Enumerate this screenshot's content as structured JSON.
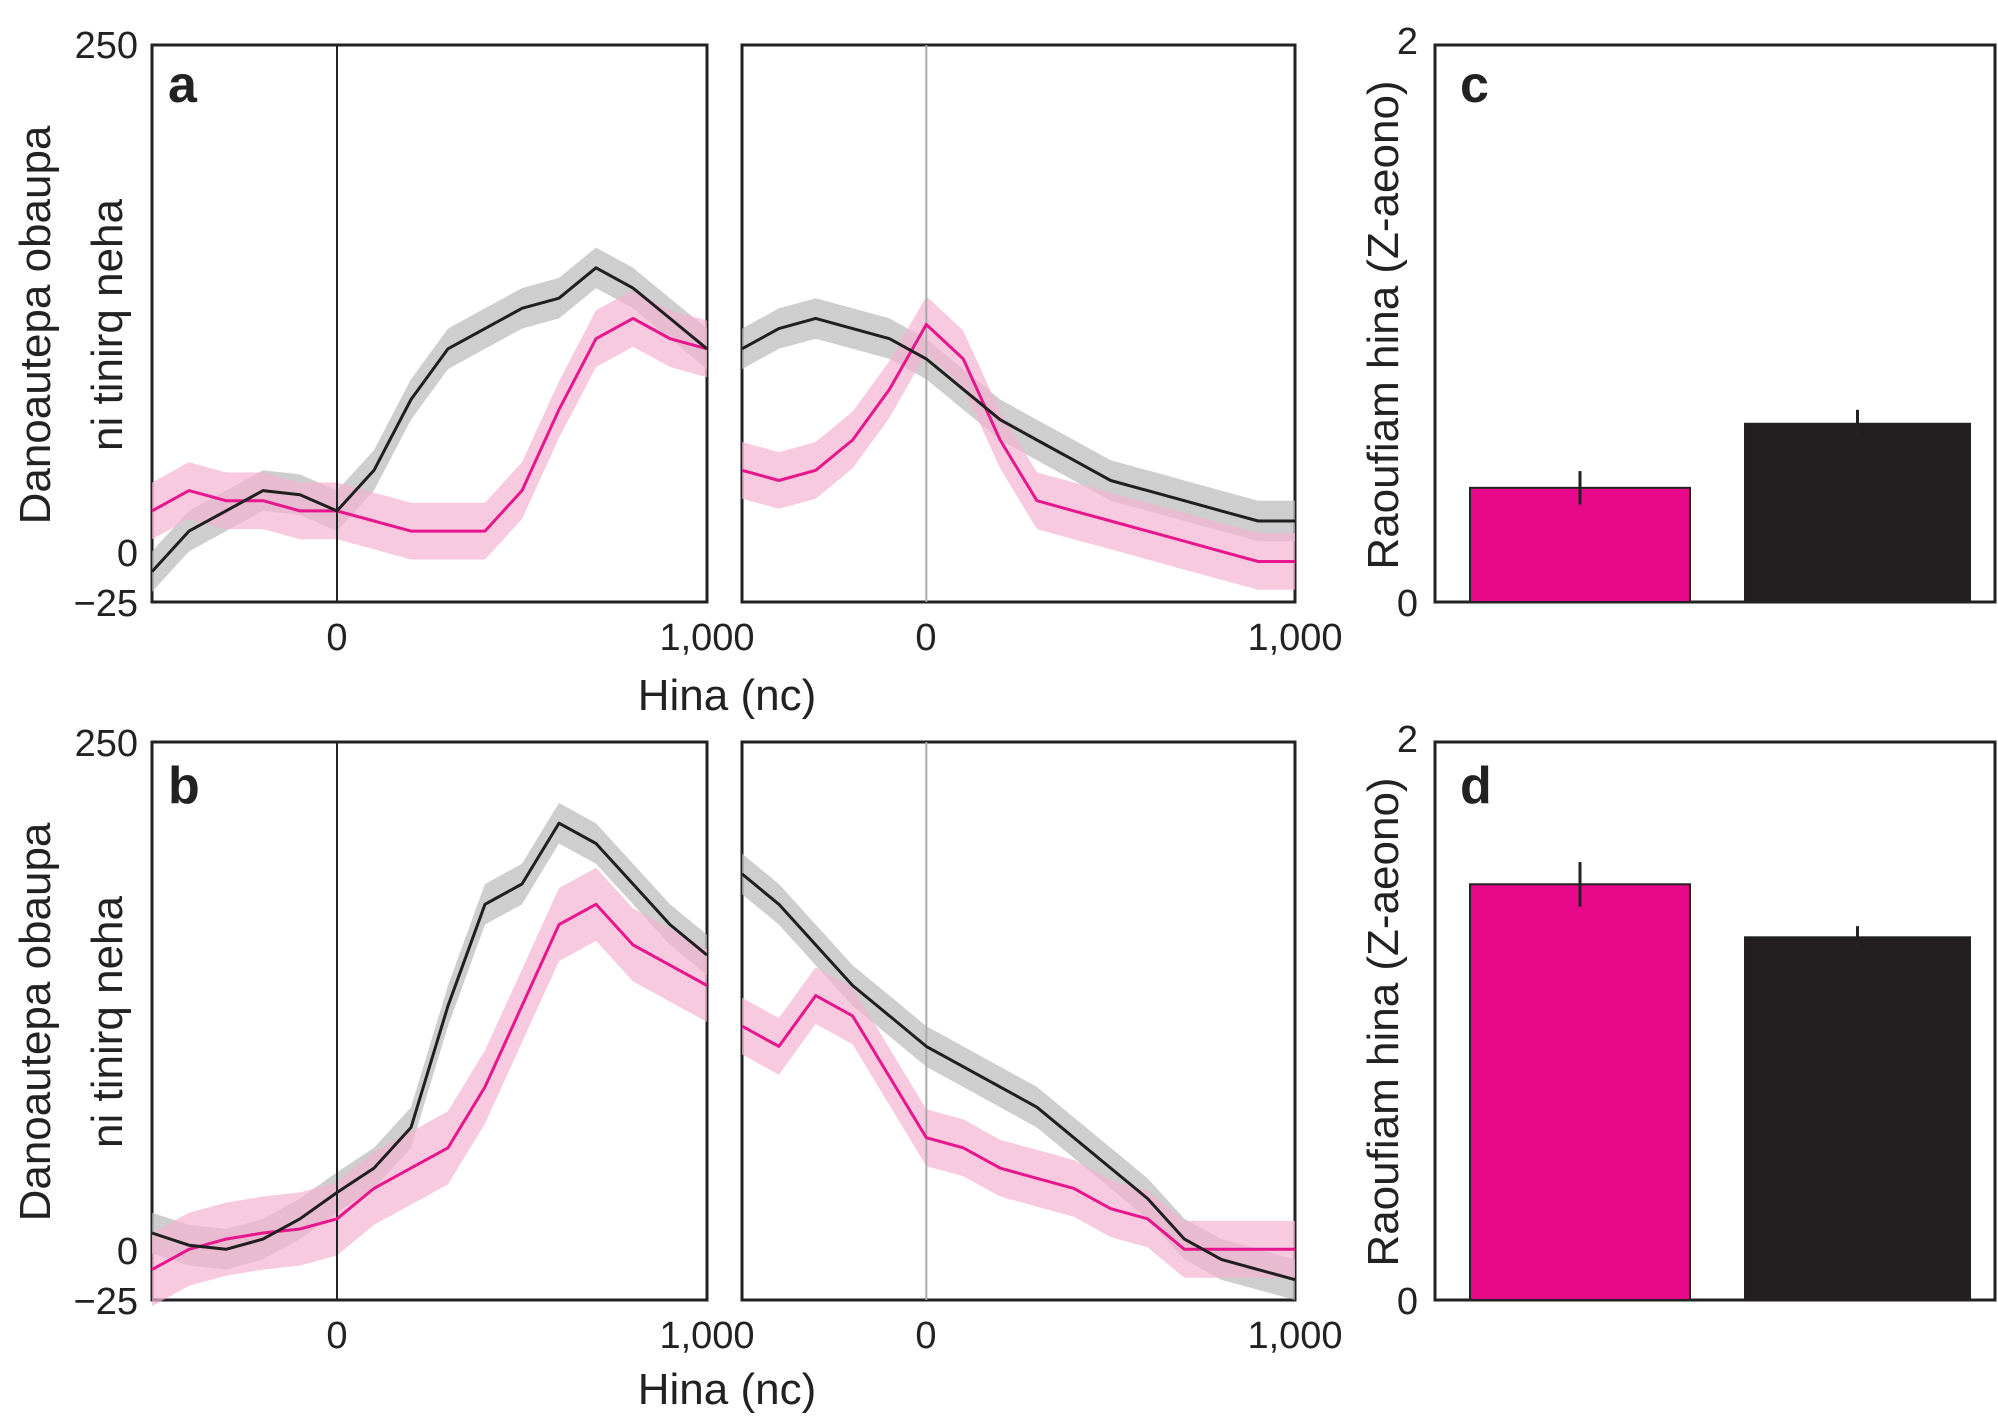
{
  "colors": {
    "magenta": "#e8168c",
    "magenta_band": "#f3b3d3",
    "black": "#1f1f1f",
    "gray_band": "#b9b9b9",
    "zero_line_left": "#222222",
    "zero_line_right": "#aaaaaa",
    "bar_magenta": "#e8098b",
    "bar_black": "#231f20"
  },
  "chart_data": [
    {
      "panel": "a",
      "type": "line",
      "ylabel_lines": [
        "Danoautepa obaupa",
        "ni tinirq neha"
      ],
      "yticks": [
        "250",
        "0",
        "−25"
      ],
      "ylim": [
        -25,
        250
      ],
      "grid": false,
      "subpanels": [
        {
          "xlim": [
            -500,
            1000
          ],
          "xticks": [
            "0",
            "1,000"
          ],
          "x": [
            -500,
            -400,
            -300,
            -200,
            -100,
            0,
            100,
            200,
            300,
            400,
            500,
            600,
            700,
            800,
            900,
            1000
          ],
          "series": [
            {
              "color": "black",
              "values": [
                -10,
                10,
                20,
                30,
                28,
                20,
                40,
                75,
                100,
                110,
                120,
                125,
                140,
                130,
                115,
                100
              ],
              "band": 10
            },
            {
              "color": "magenta",
              "values": [
                20,
                30,
                25,
                25,
                20,
                20,
                15,
                10,
                10,
                10,
                30,
                70,
                105,
                115,
                105,
                100
              ],
              "band": 14
            }
          ]
        },
        {
          "xlim": [
            -500,
            1000
          ],
          "xticks": [
            "0",
            "1,000"
          ],
          "x": [
            -500,
            -400,
            -300,
            -200,
            -100,
            0,
            100,
            200,
            300,
            400,
            500,
            600,
            700,
            800,
            900,
            1000
          ],
          "series": [
            {
              "color": "black",
              "values": [
                100,
                110,
                115,
                110,
                105,
                95,
                80,
                65,
                55,
                45,
                35,
                30,
                25,
                20,
                15,
                15
              ],
              "band": 10
            },
            {
              "color": "magenta",
              "values": [
                40,
                35,
                40,
                55,
                80,
                112,
                95,
                55,
                25,
                20,
                15,
                10,
                5,
                0,
                -5,
                -5
              ],
              "band": 14
            }
          ]
        }
      ]
    },
    {
      "panel": "b",
      "type": "line",
      "ylabel_lines": [
        "Danoautepa obaupa",
        "ni tinirq neha"
      ],
      "yticks": [
        "250",
        "0",
        "−25"
      ],
      "ylim": [
        -25,
        250
      ],
      "grid": false,
      "subpanels": [
        {
          "xlim": [
            -500,
            1000
          ],
          "xticks": [
            "0",
            "1,000"
          ],
          "x": [
            -500,
            -400,
            -300,
            -200,
            -100,
            0,
            100,
            200,
            300,
            400,
            500,
            600,
            700,
            800,
            900,
            1000
          ],
          "series": [
            {
              "color": "black",
              "values": [
                8,
                2,
                0,
                5,
                15,
                28,
                40,
                60,
                120,
                170,
                180,
                210,
                200,
                180,
                160,
                145
              ],
              "band": 10
            },
            {
              "color": "magenta",
              "values": [
                -10,
                0,
                5,
                8,
                10,
                15,
                30,
                40,
                50,
                80,
                120,
                160,
                170,
                150,
                140,
                130
              ],
              "band": 18
            }
          ]
        },
        {
          "xlim": [
            -500,
            1000
          ],
          "xticks": [
            "0",
            "1,000"
          ],
          "x": [
            -500,
            -400,
            -300,
            -200,
            -100,
            0,
            100,
            200,
            300,
            400,
            500,
            600,
            700,
            800,
            900,
            1000
          ],
          "series": [
            {
              "color": "black",
              "values": [
                185,
                170,
                150,
                130,
                115,
                100,
                90,
                80,
                70,
                55,
                40,
                25,
                5,
                -5,
                -10,
                -15
              ],
              "band": 10
            },
            {
              "color": "magenta",
              "values": [
                110,
                100,
                125,
                115,
                85,
                55,
                50,
                40,
                35,
                30,
                20,
                15,
                0,
                0,
                0,
                0
              ],
              "band": 14
            }
          ]
        }
      ]
    },
    {
      "panel": "c",
      "type": "bar",
      "ylabel": "Raoufiam hina (Z-aeono)",
      "yticks": [
        "2",
        "0"
      ],
      "ylim": [
        0,
        2
      ],
      "series": [
        {
          "color": "bar_magenta",
          "value": 0.41,
          "error": 0.06
        },
        {
          "color": "bar_black",
          "value": 0.64,
          "error": 0.05
        }
      ]
    },
    {
      "panel": "d",
      "type": "bar",
      "ylabel": "Raoufiam hina (Z-aeono)",
      "yticks": [
        "2",
        "0"
      ],
      "ylim": [
        0,
        2
      ],
      "series": [
        {
          "color": "bar_magenta",
          "value": 1.49,
          "error": 0.08
        },
        {
          "color": "bar_black",
          "value": 1.3,
          "error": 0.04
        }
      ]
    }
  ],
  "xlabel": "Hina (nc)"
}
